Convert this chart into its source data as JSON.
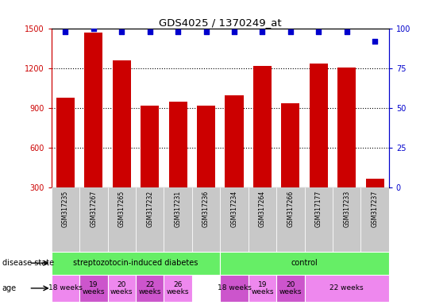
{
  "title": "GDS4025 / 1370249_at",
  "samples": [
    "GSM317235",
    "GSM317267",
    "GSM317265",
    "GSM317232",
    "GSM317231",
    "GSM317236",
    "GSM317234",
    "GSM317264",
    "GSM317266",
    "GSM317177",
    "GSM317233",
    "GSM317237"
  ],
  "counts": [
    980,
    1470,
    1260,
    920,
    950,
    920,
    1000,
    1220,
    940,
    1240,
    1210,
    370
  ],
  "percentiles": [
    98,
    100,
    98,
    98,
    98,
    98,
    98,
    98,
    98,
    98,
    98,
    92
  ],
  "bar_color": "#cc0000",
  "dot_color": "#0000cc",
  "ylim_left": [
    300,
    1500
  ],
  "ylim_right": [
    0,
    100
  ],
  "yticks_left": [
    300,
    600,
    900,
    1200,
    1500
  ],
  "yticks_right": [
    0,
    25,
    50,
    75,
    100
  ],
  "label_bg_color": "#cccccc",
  "disease_state_color": "#66ee66",
  "age_color_light": "#ee88ee",
  "age_color_dark": "#cc55cc",
  "legend_count_color": "#cc0000",
  "legend_dot_color": "#0000cc",
  "background_color": "#ffffff",
  "ds_groups": [
    {
      "label": "streptozotocin-induced diabetes",
      "cols": [
        0,
        1,
        2,
        3,
        4,
        5
      ]
    },
    {
      "label": "control",
      "cols": [
        6,
        7,
        8,
        9,
        10,
        11
      ]
    }
  ],
  "age_groups": [
    {
      "label": "18 weeks",
      "cols": [
        0
      ],
      "dark": false
    },
    {
      "label": "19\nweeks",
      "cols": [
        1
      ],
      "dark": true
    },
    {
      "label": "20\nweeks",
      "cols": [
        2
      ],
      "dark": false
    },
    {
      "label": "22\nweeks",
      "cols": [
        3
      ],
      "dark": true
    },
    {
      "label": "26\nweeks",
      "cols": [
        4
      ],
      "dark": false
    },
    {
      "label": "18 weeks",
      "cols": [
        6
      ],
      "dark": true
    },
    {
      "label": "19\nweeks",
      "cols": [
        7
      ],
      "dark": false
    },
    {
      "label": "20\nweeks",
      "cols": [
        8
      ],
      "dark": true
    },
    {
      "label": "22 weeks",
      "cols": [
        9,
        10,
        11
      ],
      "dark": false
    }
  ]
}
